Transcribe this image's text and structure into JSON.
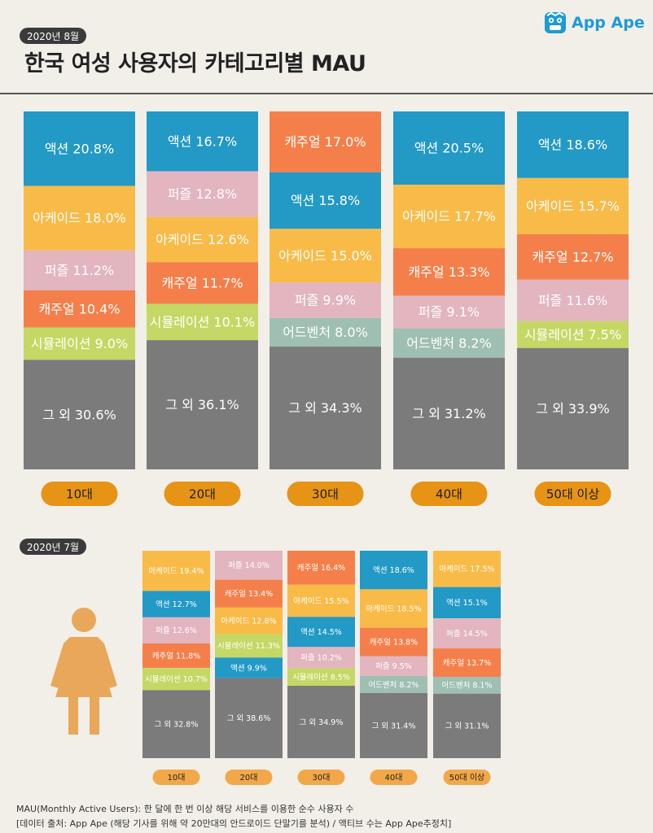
{
  "header": {
    "date_badge": "2020년 8월",
    "title": "한국 여성 사용자의 카테고리별 MAU",
    "logo_text": "App Ape"
  },
  "colors": {
    "액션": "#2399c6",
    "아케이드": "#f9bb48",
    "퍼즐": "#e2b5bf",
    "캐주얼": "#f57f4a",
    "시뮬레이션": "#c5d865",
    "어드벤처": "#9ebfb2",
    "그 외": "#7b7b7b",
    "age_badge": "#e69316",
    "age_badge_small": "#f2a849",
    "woman_icon": "#e9a75a"
  },
  "chart_data": [
    {
      "type": "bar",
      "stacked": true,
      "title": "한국 여성 사용자의 카테고리별 MAU",
      "period": "2020년 8월",
      "categories": [
        "10대",
        "20대",
        "30대",
        "40대",
        "50대 이상"
      ],
      "bars": [
        {
          "age": "10대",
          "segments": [
            {
              "name": "액션",
              "value": 20.8,
              "label": "액션 20.8%"
            },
            {
              "name": "아케이드",
              "value": 18.0,
              "label": "아케이드 18.0%"
            },
            {
              "name": "퍼즐",
              "value": 11.2,
              "label": "퍼즐 11.2%"
            },
            {
              "name": "캐주얼",
              "value": 10.4,
              "label": "캐주얼 10.4%"
            },
            {
              "name": "시뮬레이션",
              "value": 9.0,
              "label": "시뮬레이션 9.0%"
            },
            {
              "name": "그 외",
              "value": 30.6,
              "label": "그 외 30.6%"
            }
          ]
        },
        {
          "age": "20대",
          "segments": [
            {
              "name": "액션",
              "value": 16.7,
              "label": "액션 16.7%"
            },
            {
              "name": "퍼즐",
              "value": 12.8,
              "label": "퍼즐 12.8%"
            },
            {
              "name": "아케이드",
              "value": 12.6,
              "label": "아케이드 12.6%"
            },
            {
              "name": "캐주얼",
              "value": 11.7,
              "label": "캐주얼 11.7%"
            },
            {
              "name": "시뮬레이션",
              "value": 10.1,
              "label": "시뮬레이션 10.1%"
            },
            {
              "name": "그 외",
              "value": 36.1,
              "label": "그 외 36.1%"
            }
          ]
        },
        {
          "age": "30대",
          "segments": [
            {
              "name": "캐주얼",
              "value": 17.0,
              "label": "캐주얼 17.0%"
            },
            {
              "name": "액션",
              "value": 15.8,
              "label": "액션 15.8%"
            },
            {
              "name": "아케이드",
              "value": 15.0,
              "label": "아케이드 15.0%"
            },
            {
              "name": "퍼즐",
              "value": 9.9,
              "label": "퍼즐 9.9%"
            },
            {
              "name": "어드벤처",
              "value": 8.0,
              "label": "어드벤처 8.0%"
            },
            {
              "name": "그 외",
              "value": 34.3,
              "label": "그 외 34.3%"
            }
          ]
        },
        {
          "age": "40대",
          "segments": [
            {
              "name": "액션",
              "value": 20.5,
              "label": "액션 20.5%"
            },
            {
              "name": "아케이드",
              "value": 17.7,
              "label": "아케이드 17.7%"
            },
            {
              "name": "캐주얼",
              "value": 13.3,
              "label": "캐주얼 13.3%"
            },
            {
              "name": "퍼즐",
              "value": 9.1,
              "label": "퍼즐 9.1%"
            },
            {
              "name": "어드벤처",
              "value": 8.2,
              "label": "어드벤처 8.2%"
            },
            {
              "name": "그 외",
              "value": 31.2,
              "label": "그 외 31.2%"
            }
          ]
        },
        {
          "age": "50대 이상",
          "segments": [
            {
              "name": "액션",
              "value": 18.6,
              "label": "액션 18.6%"
            },
            {
              "name": "아케이드",
              "value": 15.7,
              "label": "아케이드 15.7%"
            },
            {
              "name": "캐주얼",
              "value": 12.7,
              "label": "캐주얼 12.7%"
            },
            {
              "name": "퍼즐",
              "value": 11.6,
              "label": "퍼즐 11.6%"
            },
            {
              "name": "시뮬레이션",
              "value": 7.5,
              "label": "시뮬레이션 7.5%"
            },
            {
              "name": "그 외",
              "value": 33.9,
              "label": "그 외 33.9%"
            }
          ]
        }
      ]
    },
    {
      "type": "bar",
      "stacked": true,
      "period": "2020년 7월",
      "categories": [
        "10대",
        "20대",
        "30대",
        "40대",
        "50대 이상"
      ],
      "bars": [
        {
          "age": "10대",
          "segments": [
            {
              "name": "아케이드",
              "value": 19.4,
              "label": "아케이드 19.4%"
            },
            {
              "name": "액션",
              "value": 12.7,
              "label": "액션 12.7%"
            },
            {
              "name": "퍼즐",
              "value": 12.6,
              "label": "퍼즐 12.6%"
            },
            {
              "name": "캐주얼",
              "value": 11.8,
              "label": "캐주얼 11.8%"
            },
            {
              "name": "시뮬레이션",
              "value": 10.7,
              "label": "시뮬레이션 10.7%"
            },
            {
              "name": "그 외",
              "value": 32.8,
              "label": "그 외 32.8%"
            }
          ]
        },
        {
          "age": "20대",
          "segments": [
            {
              "name": "퍼즐",
              "value": 14.0,
              "label": "퍼즐 14.0%"
            },
            {
              "name": "캐주얼",
              "value": 13.4,
              "label": "캐주얼 13.4%"
            },
            {
              "name": "아케이드",
              "value": 12.8,
              "label": "아케이드 12.8%"
            },
            {
              "name": "시뮬레이션",
              "value": 11.3,
              "label": "시뮬레이션 11.3%"
            },
            {
              "name": "액션",
              "value": 9.9,
              "label": "액션 9.9%"
            },
            {
              "name": "그 외",
              "value": 38.6,
              "label": "그 외 38.6%"
            }
          ]
        },
        {
          "age": "30대",
          "segments": [
            {
              "name": "캐주얼",
              "value": 16.4,
              "label": "캐주얼 16.4%"
            },
            {
              "name": "아케이드",
              "value": 15.5,
              "label": "아케이드 15.5%"
            },
            {
              "name": "액션",
              "value": 14.5,
              "label": "액션 14.5%"
            },
            {
              "name": "퍼즐",
              "value": 10.2,
              "label": "퍼즐 10.2%"
            },
            {
              "name": "시뮬레이션",
              "value": 8.5,
              "label": "시뮬레이션 8.5%"
            },
            {
              "name": "그 외",
              "value": 34.9,
              "label": "그 외 34.9%"
            }
          ]
        },
        {
          "age": "40대",
          "segments": [
            {
              "name": "액션",
              "value": 18.6,
              "label": "액션 18.6%"
            },
            {
              "name": "아케이드",
              "value": 18.5,
              "label": "아케이드 18.5%"
            },
            {
              "name": "캐주얼",
              "value": 13.8,
              "label": "캐주얼 13.8%"
            },
            {
              "name": "퍼즐",
              "value": 9.5,
              "label": "퍼즐 9.5%"
            },
            {
              "name": "어드벤처",
              "value": 8.2,
              "label": "어드벤처 8.2%"
            },
            {
              "name": "그 외",
              "value": 31.4,
              "label": "그 외 31.4%"
            }
          ]
        },
        {
          "age": "50대 이상",
          "segments": [
            {
              "name": "아케이드",
              "value": 17.5,
              "label": "아케이드 17.5%"
            },
            {
              "name": "액션",
              "value": 15.1,
              "label": "액션 15.1%"
            },
            {
              "name": "퍼즐",
              "value": 14.5,
              "label": "퍼즐 14.5%"
            },
            {
              "name": "캐주얼",
              "value": 13.7,
              "label": "캐주얼 13.7%"
            },
            {
              "name": "어드벤처",
              "value": 8.1,
              "label": "어드벤처 8.1%"
            },
            {
              "name": "그 외",
              "value": 31.1,
              "label": "그 외 31.1%"
            }
          ]
        }
      ]
    }
  ],
  "footer": {
    "line1": "MAU(Monthly Active Users):  한 달에 한 번 이상 해당 서비스를 이용한 순수 사용자 수",
    "line2": "[데이터 출처: App Ape (해당 기사를 위해 약 20만대의 안드로이드 단말기를 분석) / 액티브 수는 App Ape추정치]"
  }
}
